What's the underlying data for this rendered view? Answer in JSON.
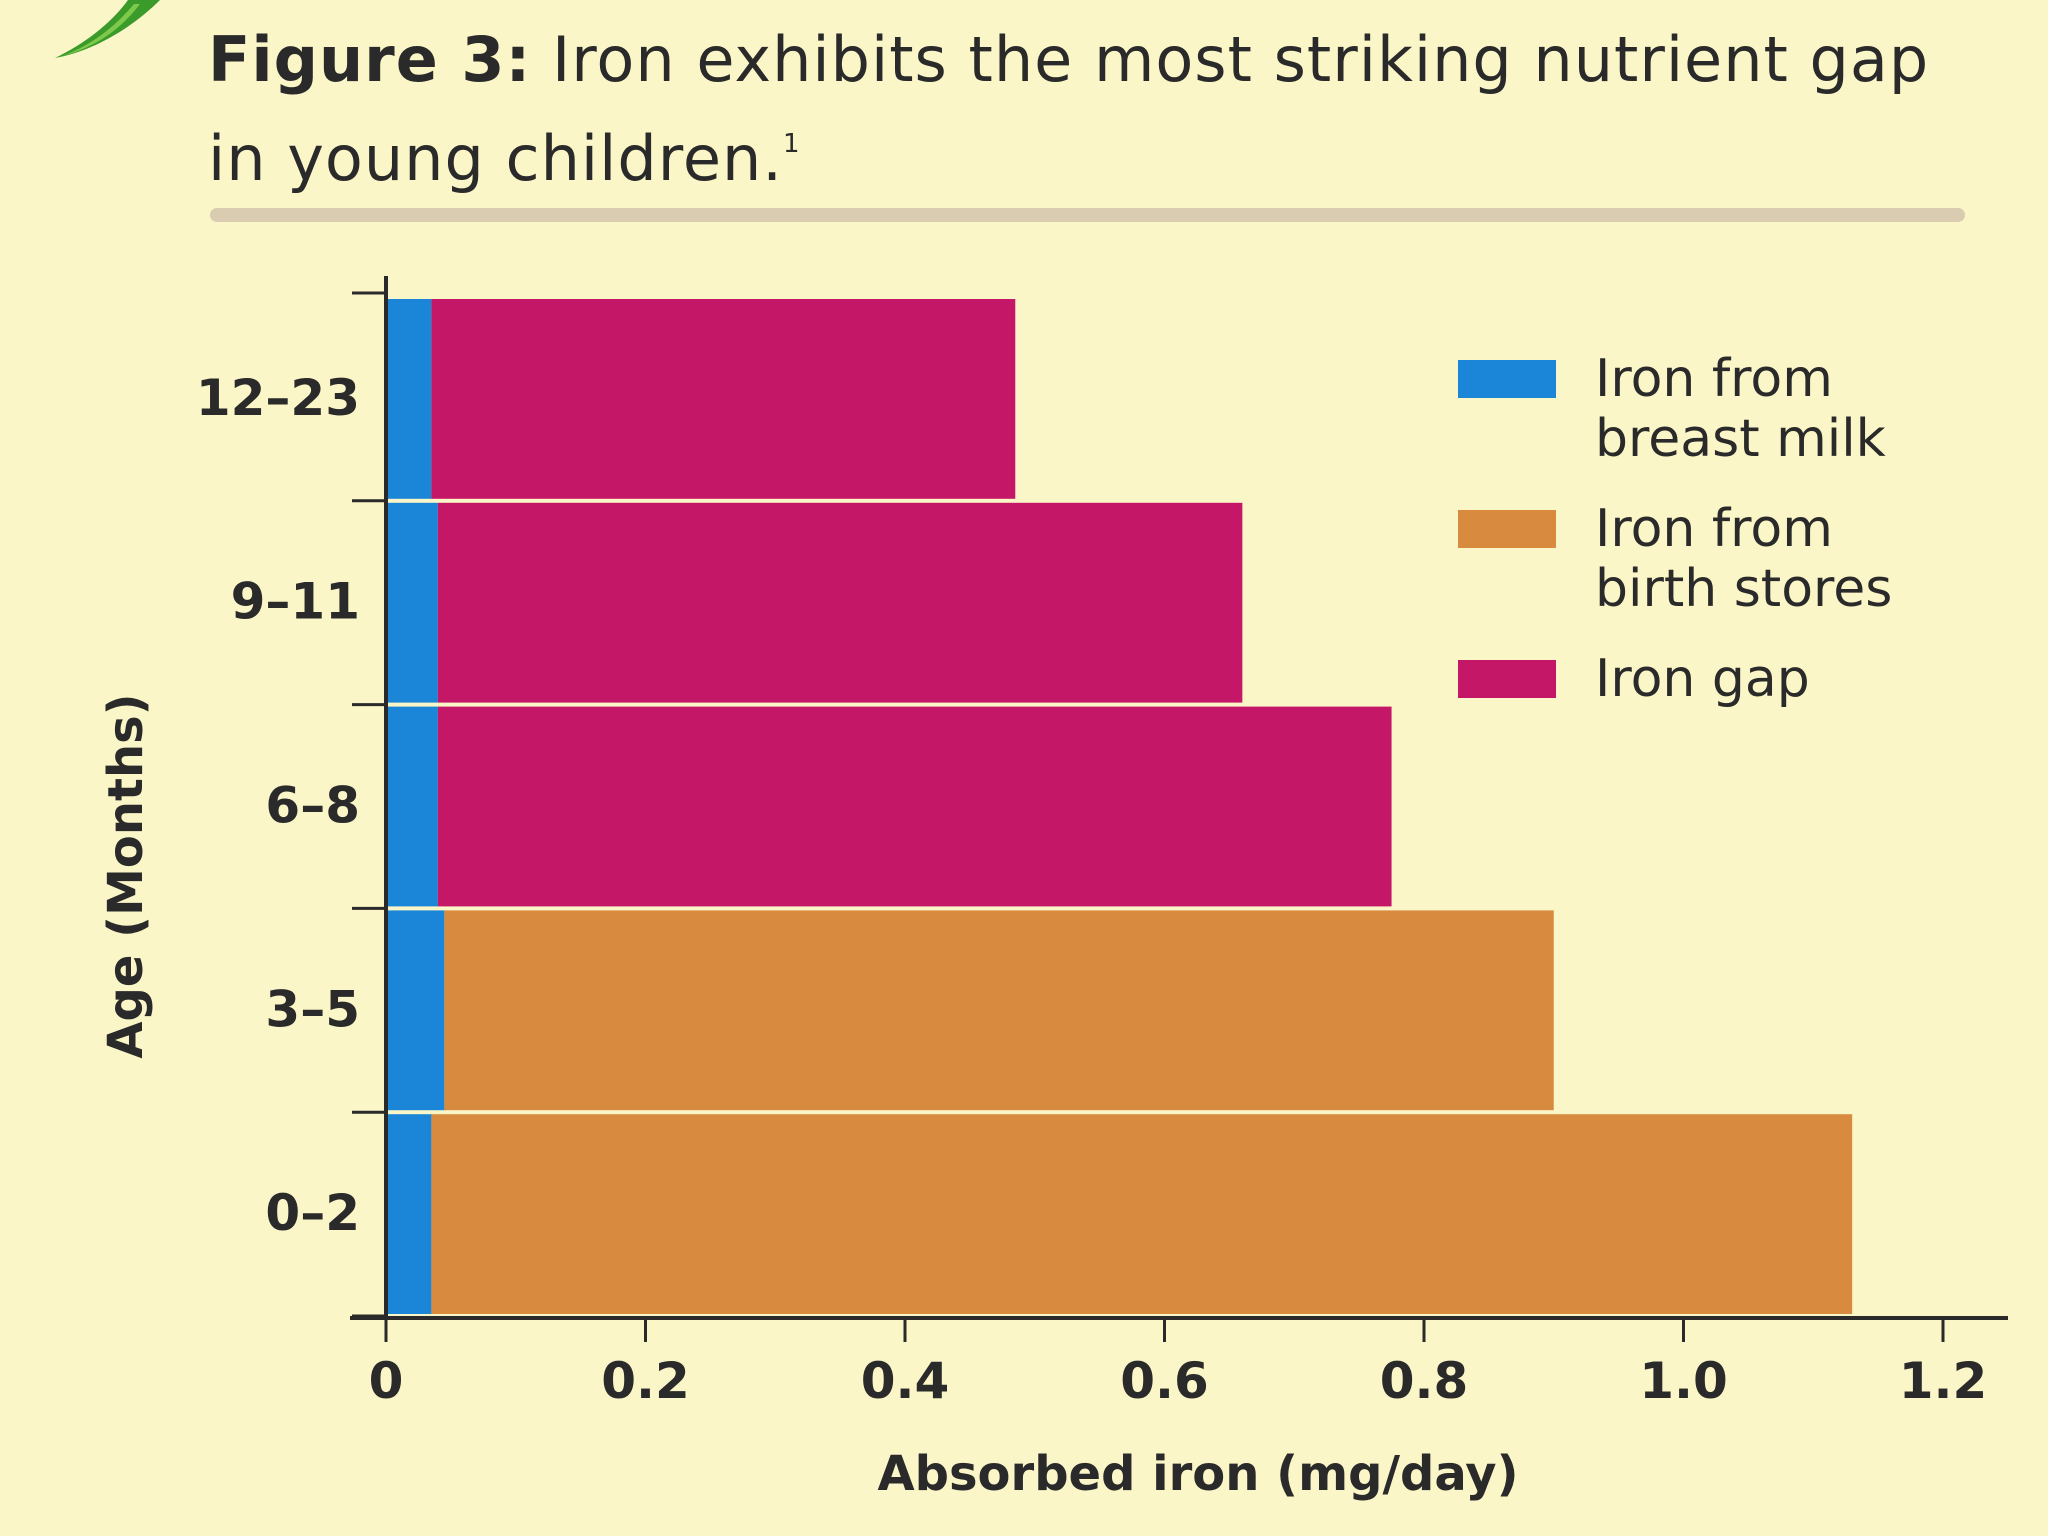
{
  "figure": {
    "label": "Figure 3:",
    "caption": "Iron exhibits the most striking nutrient gap in young children.",
    "footnote": "1"
  },
  "colors": {
    "background": "#fbf6c8",
    "breast_milk": "#1b85d8",
    "birth_stores": "#d88a3e",
    "iron_gap": "#c41768",
    "logo": "#3a9a2a"
  },
  "chart_data": {
    "type": "bar",
    "orientation": "horizontal",
    "stacked": true,
    "categories": [
      "0–2",
      "3–5",
      "6–8",
      "9–11",
      "12–23"
    ],
    "series": [
      {
        "name": "Iron from breast milk",
        "values": [
          0.035,
          0.045,
          0.04,
          0.04,
          0.035
        ]
      },
      {
        "name": "Iron from birth stores",
        "values": [
          1.095,
          0.855,
          0,
          0,
          0
        ]
      },
      {
        "name": "Iron gap",
        "values": [
          0,
          0,
          0.735,
          0.62,
          0.45
        ]
      }
    ],
    "xlabel": "Absorbed iron (mg/day)",
    "ylabel": "Age (Months)",
    "xlim": [
      0,
      1.2
    ],
    "xticks": [
      0,
      0.2,
      0.4,
      0.6,
      0.8,
      1.0,
      1.2
    ],
    "xtick_labels": [
      "0",
      "0.2",
      "0.4",
      "0.6",
      "0.8",
      "1.0",
      "1.2"
    ],
    "legend": [
      {
        "lines": [
          "Iron from",
          "breast milk"
        ]
      },
      {
        "lines": [
          "Iron from",
          "birth stores"
        ]
      },
      {
        "lines": [
          "Iron gap"
        ]
      }
    ],
    "legend_position": "top-right",
    "grid": false
  }
}
